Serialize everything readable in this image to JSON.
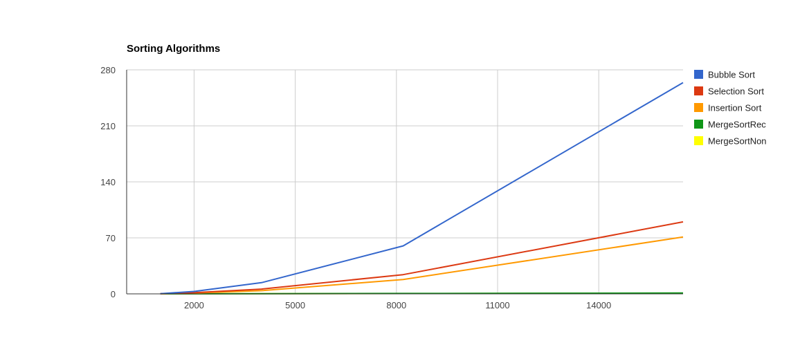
{
  "chart_data": {
    "type": "line",
    "title": "Sorting Algorithms",
    "xlabel": "",
    "ylabel": "",
    "xlim": [
      0,
      16500
    ],
    "ylim": [
      0,
      280
    ],
    "x_ticks": [
      2000,
      5000,
      8000,
      11000,
      14000
    ],
    "x_tick_labels": [
      "2000",
      "5000",
      "8000",
      "11000",
      "14000"
    ],
    "y_ticks": [
      0,
      70,
      140,
      210,
      280
    ],
    "y_tick_labels": [
      "0",
      "70",
      "140",
      "210",
      "280"
    ],
    "grid": true,
    "legend_position": "right",
    "x": [
      1000,
      2000,
      4000,
      8200,
      16500
    ],
    "series": [
      {
        "name": "Bubble Sort",
        "color": "#3366cc",
        "values": [
          0.3,
          3,
          14,
          60,
          264
        ]
      },
      {
        "name": "Selection Sort",
        "color": "#dc3912",
        "values": [
          0.2,
          1.5,
          6,
          24,
          90
        ]
      },
      {
        "name": "Insertion Sort",
        "color": "#ff9900",
        "values": [
          0.1,
          1,
          4,
          18,
          71
        ]
      },
      {
        "name": "MergeSortRec",
        "color": "#109618",
        "values": [
          0.05,
          0.1,
          0.2,
          0.5,
          1
        ]
      },
      {
        "name": "MergeSortNon",
        "color": "#ffff00",
        "values": [
          0.05,
          0.1,
          0.2,
          0.4,
          0.8
        ]
      }
    ]
  }
}
